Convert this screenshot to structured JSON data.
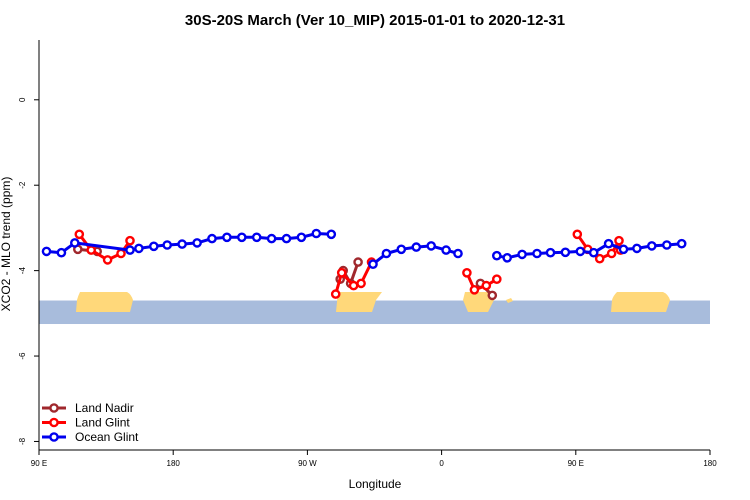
{
  "chart_data": {
    "type": "line",
    "title": "30S-20S March (Ver 10_MIP)   2015-01-01 to 2020-12-31",
    "xlabel": "Longitude",
    "ylabel": "XCO2 - MLO trend (ppm)",
    "x_unit": "degrees longitude, continuous from 90 E",
    "xlim": [
      90,
      540
    ],
    "ylim": [
      -8.2,
      1.4
    ],
    "x_ticks": [
      {
        "value": 90,
        "label": "90 E"
      },
      {
        "value": 180,
        "label": "180"
      },
      {
        "value": 270,
        "label": "90 W"
      },
      {
        "value": 360,
        "label": "0"
      },
      {
        "value": 450,
        "label": "90 E"
      },
      {
        "value": 540,
        "label": "180"
      }
    ],
    "y_ticks": [
      {
        "value": 0,
        "label": "0"
      },
      {
        "value": -2,
        "label": "-2"
      },
      {
        "value": -4,
        "label": "-4"
      },
      {
        "value": -6,
        "label": "-6"
      },
      {
        "value": -8,
        "label": "-8"
      }
    ],
    "grid": false,
    "legend_position": "bottom-left",
    "map_band": {
      "y_top": -4.7,
      "y_bottom": -5.25,
      "ocean_color": "#a8bcdc",
      "land_color": "#ffd87a"
    },
    "series": [
      {
        "name": "Land Nadir",
        "color": "#a0282d",
        "segments": [
          [
            [
              116,
              -3.5
            ],
            [
              129,
              -3.55
            ]
          ],
          [
            [
              292,
              -4.2
            ],
            [
              294,
              -4.0
            ],
            [
              299,
              -4.3
            ],
            [
              304,
              -3.8
            ]
          ],
          [
            [
              386,
              -4.3
            ],
            [
              394,
              -4.58
            ]
          ]
        ]
      },
      {
        "name": "Land Glint",
        "color": "#ff0000",
        "segments": [
          [
            [
              117,
              -3.15
            ],
            [
              125,
              -3.52
            ],
            [
              136,
              -3.75
            ],
            [
              145,
              -3.6
            ],
            [
              151,
              -3.3
            ]
          ],
          [
            [
              289,
              -4.55
            ],
            [
              293,
              -4.05
            ],
            [
              301,
              -4.35
            ],
            [
              306,
              -4.3
            ],
            [
              313,
              -3.8
            ]
          ],
          [
            [
              377,
              -4.05
            ],
            [
              382,
              -4.45
            ],
            [
              390,
              -4.35
            ],
            [
              397,
              -4.2
            ]
          ],
          [
            [
              451,
              -3.15
            ],
            [
              458,
              -3.5
            ],
            [
              466,
              -3.72
            ],
            [
              474,
              -3.6
            ],
            [
              479,
              -3.3
            ],
            [
              480,
              -3.52
            ]
          ]
        ]
      },
      {
        "name": "Ocean Glint",
        "color": "#0000ee",
        "segments": [
          [
            [
              95,
              -3.55
            ],
            [
              105,
              -3.58
            ],
            [
              114,
              -3.35
            ],
            [
              151,
              -3.52
            ],
            [
              157,
              -3.48
            ],
            [
              167,
              -3.43
            ],
            [
              176,
              -3.4
            ],
            [
              186,
              -3.38
            ],
            [
              196,
              -3.35
            ],
            [
              206,
              -3.25
            ],
            [
              216,
              -3.22
            ],
            [
              226,
              -3.22
            ],
            [
              236,
              -3.22
            ],
            [
              246,
              -3.25
            ],
            [
              256,
              -3.25
            ],
            [
              266,
              -3.22
            ],
            [
              276,
              -3.13
            ],
            [
              286,
              -3.15
            ]
          ],
          [
            [
              314,
              -3.85
            ],
            [
              323,
              -3.6
            ],
            [
              333,
              -3.5
            ],
            [
              343,
              -3.45
            ],
            [
              353,
              -3.42
            ],
            [
              363,
              -3.52
            ],
            [
              371,
              -3.6
            ]
          ],
          [
            [
              397,
              -3.65
            ],
            [
              404,
              -3.7
            ],
            [
              414,
              -3.62
            ],
            [
              424,
              -3.6
            ],
            [
              433,
              -3.58
            ],
            [
              443,
              -3.57
            ],
            [
              453,
              -3.55
            ],
            [
              462,
              -3.58
            ],
            [
              472,
              -3.37
            ],
            [
              482,
              -3.5
            ],
            [
              491,
              -3.48
            ],
            [
              501,
              -3.42
            ],
            [
              511,
              -3.4
            ],
            [
              521,
              -3.37
            ]
          ]
        ]
      }
    ]
  }
}
